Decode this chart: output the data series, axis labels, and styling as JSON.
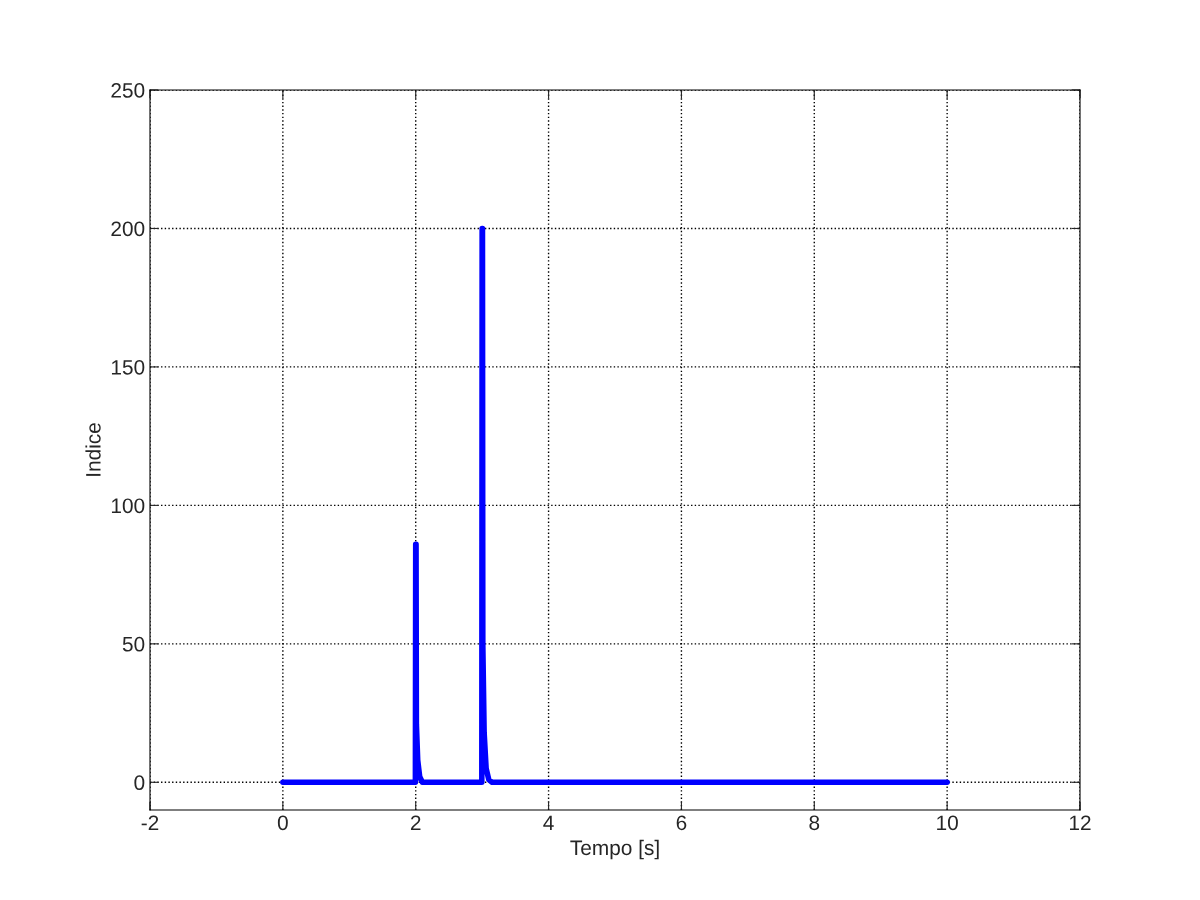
{
  "chart_data": {
    "type": "line",
    "xlabel": "Tempo [s]",
    "ylabel": "Indice",
    "x": [
      0,
      1.995,
      2.0,
      2.005,
      2.01,
      2.03,
      2.06,
      2.1,
      2.995,
      3.0,
      3.005,
      3.01,
      3.03,
      3.06,
      3.1,
      3.15,
      10
    ],
    "series": [
      {
        "color": "#0000ff",
        "values": [
          0,
          0,
          86,
          86,
          21,
          8,
          2,
          0,
          0,
          200,
          200,
          50,
          18,
          5,
          1,
          0,
          0
        ]
      }
    ],
    "xlim": [
      -2,
      12
    ],
    "xticks": [
      -2,
      0,
      2,
      4,
      6,
      8,
      10,
      12
    ],
    "ylim": [
      -10,
      250
    ],
    "yticks": [
      0,
      50,
      100,
      150,
      200,
      250
    ],
    "grid": true,
    "line_style": "solid",
    "marker": "none",
    "legend": false
  }
}
